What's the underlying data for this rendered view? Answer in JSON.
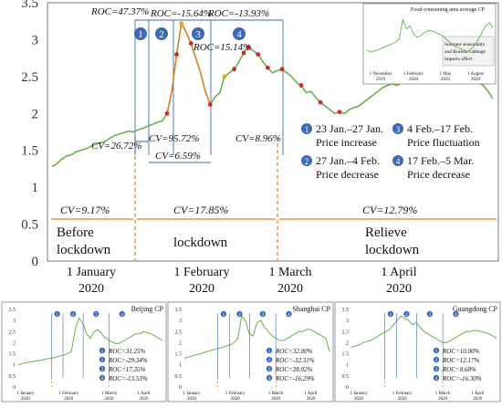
{
  "chart_data": [
    {
      "type": "line",
      "panel": "main",
      "ylim": [
        0,
        3.5
      ],
      "yticks": [
        "0",
        "0.5",
        "1",
        "1.5",
        "2",
        "2.5",
        "3",
        "3.5"
      ],
      "xticks": [
        {
          "l1": "1 January",
          "l2": "2020"
        },
        {
          "l1": "1 February",
          "l2": "2020"
        },
        {
          "l1": "1 March",
          "l2": "2020"
        },
        {
          "l1": "1 April",
          "l2": "2020"
        }
      ],
      "series": [
        {
          "values": [
            1.28,
            1.32,
            1.38,
            1.42,
            1.44,
            1.48,
            1.5,
            1.52,
            1.55,
            1.58,
            1.6,
            1.62,
            1.66,
            1.7,
            1.72,
            1.74,
            1.76,
            1.75,
            1.78,
            1.8,
            1.83,
            1.85,
            1.88,
            1.9,
            2.0,
            2.3,
            2.8,
            3.22,
            3.1,
            2.95,
            2.75,
            2.55,
            2.3,
            2.12,
            2.22,
            2.28,
            2.5,
            2.55,
            2.6,
            2.7,
            2.82,
            2.9,
            2.85,
            2.8,
            2.7,
            2.62,
            2.55,
            2.58,
            2.6,
            2.55,
            2.5,
            2.42,
            2.38,
            2.28,
            2.3,
            2.22,
            2.15,
            2.1,
            2.05,
            2.0,
            2.02,
            2.0,
            2.05,
            2.08,
            2.1,
            2.15,
            2.2,
            2.25,
            2.3,
            2.35,
            2.38,
            2.4,
            2.38,
            2.42,
            2.45,
            2.48,
            2.46,
            2.5,
            2.52,
            2.5,
            2.53,
            2.55,
            2.55,
            2.58,
            2.56,
            2.55,
            2.5,
            2.48,
            2.45,
            2.42,
            2.38,
            2.3,
            2.2
          ]
        }
      ],
      "annotations": {
        "roc": [
          "ROC=47.37%",
          "ROC=-15.64%",
          "ROC=-13.93%",
          "ROC=15.14%"
        ],
        "cv_phase": [
          "CV=26.72%",
          "CV=95.72%",
          "CV=6.59%",
          "CV=8.96%"
        ],
        "cv_period": [
          "CV=9.17%",
          "CV=17.85%",
          "CV=12.79%"
        ],
        "period_labels": [
          {
            "l1": "Before",
            "l2": "lockdown"
          },
          {
            "l1": "lockdown",
            "l2": ""
          },
          {
            "l1": "Relieve",
            "l2": "lockdown"
          }
        ],
        "phase_numbers": [
          "1",
          "2",
          "3",
          "4"
        ],
        "legend": [
          {
            "num": "1",
            "l1": "23 Jan.–27 Jan.",
            "l2": "Price increase"
          },
          {
            "num": "2",
            "l1": "27 Jan.–4 Feb.",
            "l2": "Price decrease"
          },
          {
            "num": "3",
            "l1": "4 Feb.–17 Feb.",
            "l2": "Price fluctuation"
          },
          {
            "num": "4",
            "l1": "17 Feb.–5 Mar.",
            "l2": "Price decrease"
          }
        ]
      },
      "inset": {
        "title": "Food-consuming area average CP",
        "note_l1": "Summer seasonality",
        "note_l2": "and Korean cabbage",
        "note_l3": "imports affect",
        "xticks": [
          {
            "l1": "1 November",
            "l2": "2019"
          },
          {
            "l1": "1 February",
            "l2": "2020"
          },
          {
            "l1": "1 May",
            "l2": "2020"
          },
          {
            "l1": "1 August",
            "l2": "2020"
          }
        ],
        "values": [
          1.3,
          1.2,
          1.25,
          1.3,
          1.4,
          1.5,
          1.6,
          1.7,
          1.8,
          2.0,
          3.2,
          2.6,
          2.8,
          2.3,
          2.1,
          2.2,
          2.4,
          2.5,
          2.5,
          2.4,
          2.3,
          2.2,
          2.0,
          1.8,
          1.6,
          1.5,
          1.4,
          1.3,
          1.2,
          1.4,
          1.6,
          2.0,
          2.4,
          2.8,
          3.0,
          2.7
        ]
      }
    },
    {
      "type": "line",
      "title": "Beijing CP",
      "ylim": [
        0,
        3.5
      ],
      "yticks": [
        "0",
        "0.5",
        "1",
        "1.5",
        "2",
        "2.5",
        "3",
        "3.5"
      ],
      "xticks": [
        {
          "l1": "1 January",
          "l2": "2020"
        },
        {
          "l1": "1 February",
          "l2": "2020"
        },
        {
          "l1": "1 March",
          "l2": "2020"
        },
        {
          "l1": "1 April",
          "l2": "2020"
        }
      ],
      "roc": [
        "ROC=31.25%",
        "ROC=-29.34%",
        "ROC=17.35%",
        "ROC=-13.53%"
      ],
      "values": [
        1.0,
        1.05,
        1.1,
        1.12,
        1.15,
        1.18,
        1.2,
        1.25,
        1.28,
        1.3,
        1.35,
        1.4,
        1.45,
        1.5,
        1.6,
        2.6,
        3.1,
        2.9,
        2.4,
        2.2,
        2.5,
        2.6,
        2.4,
        2.2,
        2.1,
        2.0,
        1.95,
        2.0,
        2.1,
        2.2,
        2.3,
        2.4,
        2.4,
        2.5,
        2.45,
        2.4,
        2.3,
        2.2,
        2.1
      ]
    },
    {
      "type": "line",
      "title": "Shanghai CP",
      "ylim": [
        0,
        3.5
      ],
      "yticks": [
        "0",
        "0.5",
        "1",
        "1.5",
        "2",
        "2.5",
        "3",
        "3.5"
      ],
      "xticks": [
        {
          "l1": "1 January",
          "l2": "2020"
        },
        {
          "l1": "1 February",
          "l2": "2020"
        },
        {
          "l1": "1 March",
          "l2": "2020"
        },
        {
          "l1": "1 April",
          "l2": "2020"
        }
      ],
      "roc": [
        "ROC=32.00%",
        "ROC=-32.31%",
        "ROC=28.92%",
        "ROC=-16.29%"
      ],
      "values": [
        1.3,
        1.35,
        1.4,
        1.45,
        1.5,
        1.55,
        1.6,
        1.65,
        1.7,
        1.75,
        1.8,
        1.85,
        1.9,
        2.0,
        2.2,
        3.2,
        3.0,
        2.4,
        2.3,
        2.9,
        3.0,
        2.7,
        2.5,
        2.3,
        2.2,
        2.1,
        2.1,
        2.2,
        2.3,
        2.4,
        2.5,
        2.5,
        2.6,
        2.6,
        2.5,
        2.4,
        2.3,
        2.2,
        1.6
      ]
    },
    {
      "type": "line",
      "title": "Guangdong CP",
      "ylim": [
        0,
        3.5
      ],
      "yticks": [
        "0",
        "0.5",
        "1",
        "1.5",
        "2",
        "2.5",
        "3",
        "3.5"
      ],
      "xticks": [
        {
          "l1": "1 January",
          "l2": "2020"
        },
        {
          "l1": "1 February",
          "l2": "2020"
        },
        {
          "l1": "1 March",
          "l2": "2020"
        },
        {
          "l1": "1 April",
          "l2": "2020"
        }
      ],
      "roc": [
        "ROC=10.00%",
        "ROC=12.17%",
        "ROC=8.68%",
        "ROC=-16.30%"
      ],
      "values": [
        1.8,
        1.85,
        1.9,
        2.0,
        2.05,
        2.1,
        2.2,
        2.3,
        2.4,
        2.5,
        2.6,
        2.8,
        3.0,
        3.2,
        3.1,
        3.0,
        2.8,
        2.9,
        2.7,
        2.5,
        2.4,
        2.3,
        2.2,
        2.1,
        2.0,
        2.0,
        2.1,
        2.2,
        2.3,
        2.4,
        2.5,
        2.5,
        2.55,
        2.55,
        2.5,
        2.45,
        2.4,
        2.3,
        2.2
      ]
    }
  ]
}
